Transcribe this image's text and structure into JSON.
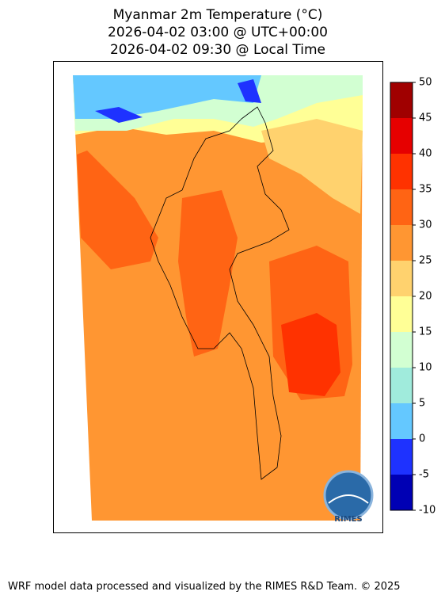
{
  "title": [
    "Myanmar 2m Temperature (°C)",
    "2026-04-02 03:00 @ UTC+00:00",
    "2026-04-02 09:30 @ Local Time"
  ],
  "colorbar": {
    "ticks": [
      -10,
      -5,
      0,
      5,
      10,
      15,
      20,
      25,
      30,
      35,
      40,
      45,
      50
    ],
    "colors": [
      "#0000b4",
      "#1e32ff",
      "#64c8ff",
      "#a0ebdc",
      "#d2ffd2",
      "#ffff96",
      "#ffd26e",
      "#ff9632",
      "#ff6414",
      "#ff3200",
      "#e60000",
      "#a00000"
    ]
  },
  "logo": "RIMES",
  "footer": "WRF model data processed and visualized by the RIMES R&D Team. © 2025"
}
